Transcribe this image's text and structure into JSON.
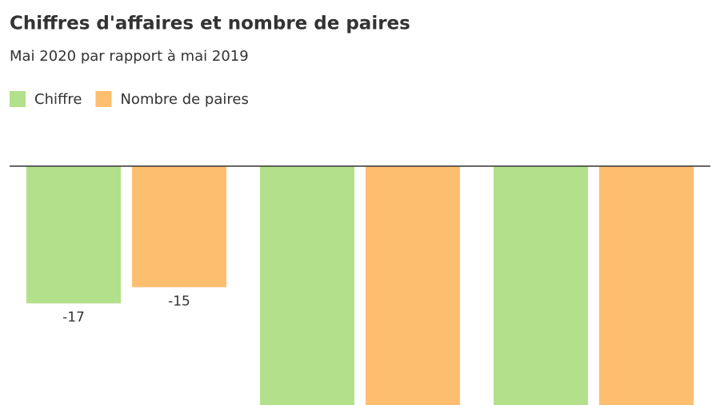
{
  "chart_data": {
    "type": "bar",
    "title": "Chiffres d'affaires et nombre de paires",
    "subtitle": "Mai 2020 par rapport à mai 2019",
    "categories": [
      null,
      null,
      null
    ],
    "series": [
      {
        "name": "Chiffre",
        "color": "#b3e08a",
        "values": [
          -17,
          -30,
          -30
        ]
      },
      {
        "name": "Nombre de paires",
        "color": "#fdbf6f",
        "values": [
          -15,
          -30,
          -30
        ]
      }
    ],
    "ylim": [
      -29.6,
      0
    ],
    "legend": "top-left"
  }
}
